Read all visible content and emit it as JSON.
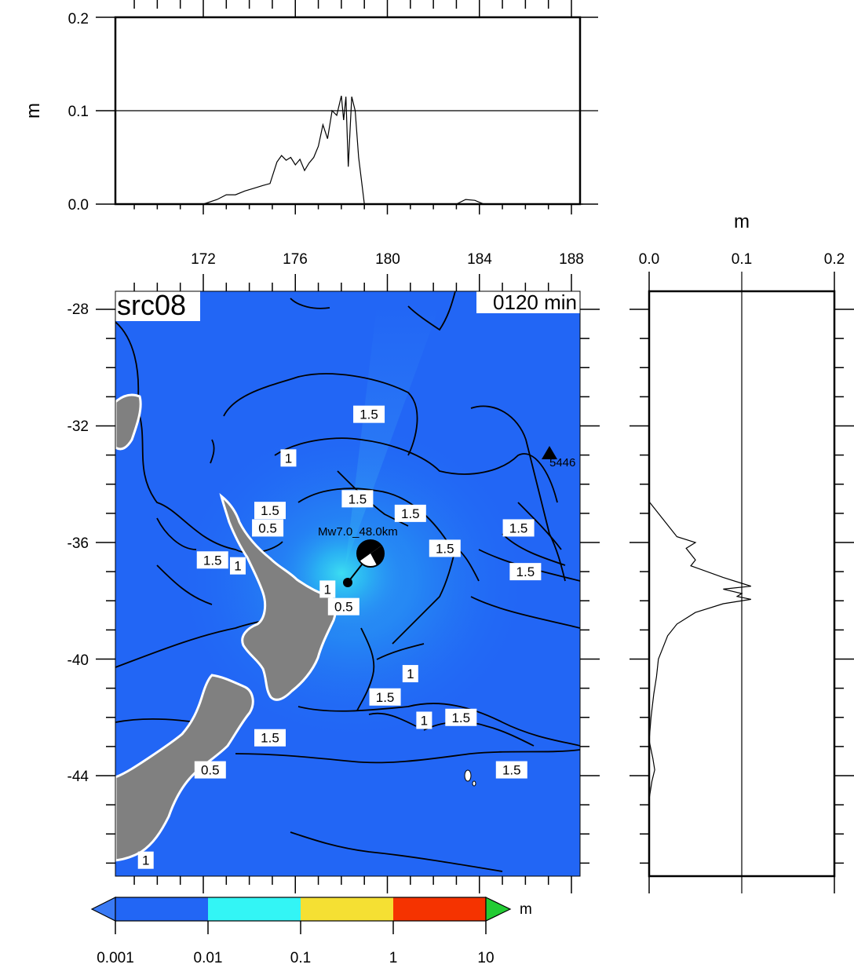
{
  "map": {
    "title": "src08",
    "time": "0120 min",
    "station_label": "5446",
    "event_label": "Mw7.0_48.0km",
    "ocean_color": "#2266f5",
    "land_color": "#808080"
  },
  "top_panel": {
    "ylabel": "m",
    "yticks": [
      "0.0",
      "0.1",
      "0.2"
    ],
    "ylim": [
      0,
      0.2
    ]
  },
  "lon_axis": {
    "ticks": [
      "172",
      "176",
      "180",
      "184",
      "188"
    ]
  },
  "lat_axis": {
    "ticks": [
      "-28",
      "-32",
      "-36",
      "-40",
      "-44"
    ]
  },
  "side_panel": {
    "xlabel": "m",
    "xticks": [
      "0.0",
      "0.1",
      "0.2"
    ],
    "xlim": [
      0,
      0.2
    ]
  },
  "contour_labels": [
    {
      "text": "1.5",
      "lon": 179.2,
      "lat": -31.6
    },
    {
      "text": "1",
      "lon": 175.7,
      "lat": -33.1
    },
    {
      "text": "1.5",
      "lon": 174.9,
      "lat": -34.9
    },
    {
      "text": "0.5",
      "lon": 174.8,
      "lat": -35.5
    },
    {
      "text": "1.5",
      "lon": 178.7,
      "lat": -34.5
    },
    {
      "text": "1.5",
      "lon": 181.0,
      "lat": -35.0
    },
    {
      "text": "1.5",
      "lon": 185.7,
      "lat": -35.5
    },
    {
      "text": "1.5",
      "lon": 182.5,
      "lat": -36.2
    },
    {
      "text": "1.5",
      "lon": 172.4,
      "lat": -36.6
    },
    {
      "text": "1",
      "lon": 173.5,
      "lat": -36.8
    },
    {
      "text": "1.5",
      "lon": 186.0,
      "lat": -37.0
    },
    {
      "text": "1",
      "lon": 177.4,
      "lat": -37.6
    },
    {
      "text": "0.5",
      "lon": 178.1,
      "lat": -38.2
    },
    {
      "text": "1",
      "lon": 181.0,
      "lat": -40.5
    },
    {
      "text": "1.5",
      "lon": 179.9,
      "lat": -41.3
    },
    {
      "text": "1.5",
      "lon": 183.2,
      "lat": -42.0
    },
    {
      "text": "1",
      "lon": 181.6,
      "lat": -42.1
    },
    {
      "text": "1.5",
      "lon": 185.4,
      "lat": -43.8
    },
    {
      "text": "1.5",
      "lon": 174.9,
      "lat": -42.7
    },
    {
      "text": "0.5",
      "lon": 172.3,
      "lat": -43.8
    },
    {
      "text": "1",
      "lon": 169.5,
      "lat": -46.9
    }
  ],
  "colorbar": {
    "unit": "m",
    "labels": [
      "0.001",
      "0.01",
      "0.1",
      "1",
      "10"
    ],
    "colors": [
      "#2266f5",
      "#33f5f5",
      "#f5e033",
      "#f53300"
    ]
  },
  "chart_data": [
    {
      "type": "line",
      "ylabel": "m",
      "ylim": [
        0,
        0.2
      ],
      "xlim": [
        168,
        188.5
      ],
      "x": [
        172.0,
        172.6,
        173.0,
        173.4,
        173.8,
        174.2,
        174.6,
        174.9,
        175.2,
        175.4,
        175.6,
        175.8,
        176.0,
        176.2,
        176.4,
        176.6,
        176.8,
        177.0,
        177.2,
        177.4,
        177.6,
        177.8,
        178.0,
        178.1,
        178.2,
        178.3,
        178.45,
        178.6,
        178.75,
        178.9,
        179.0,
        179.1,
        179.2,
        183.0,
        183.4,
        183.8,
        184.2,
        188.5
      ],
      "y": [
        0.0,
        0.005,
        0.01,
        0.01,
        0.014,
        0.017,
        0.02,
        0.022,
        0.045,
        0.052,
        0.047,
        0.05,
        0.042,
        0.048,
        0.036,
        0.044,
        0.05,
        0.062,
        0.085,
        0.07,
        0.1,
        0.095,
        0.116,
        0.09,
        0.115,
        0.04,
        0.115,
        0.1,
        0.05,
        0.02,
        0.0,
        0.0,
        0.0,
        0.0,
        0.005,
        0.004,
        0.0,
        0.0
      ]
    },
    {
      "type": "line",
      "xlabel": "m",
      "xlim": [
        0,
        0.2
      ],
      "ylim": [
        -47.5,
        -27.5
      ],
      "y": [
        -34.6,
        -35.0,
        -35.4,
        -35.8,
        -36.0,
        -36.2,
        -36.6,
        -36.8,
        -37.2,
        -37.4,
        -37.5,
        -37.6,
        -37.75,
        -37.85,
        -37.95,
        -38.1,
        -38.4,
        -38.8,
        -39.2,
        -39.6,
        -40.0,
        -40.6,
        -41.2,
        -42.0,
        -42.8,
        -43.4,
        -43.8,
        -44.2,
        -44.8,
        -45.5,
        -47.5
      ],
      "x": [
        0.0,
        0.01,
        0.02,
        0.03,
        0.05,
        0.04,
        0.05,
        0.045,
        0.08,
        0.1,
        0.11,
        0.08,
        0.1,
        0.095,
        0.11,
        0.08,
        0.05,
        0.03,
        0.02,
        0.015,
        0.01,
        0.008,
        0.005,
        0.002,
        0.0,
        0.004,
        0.006,
        0.003,
        0.0,
        0.0,
        0.0
      ]
    }
  ]
}
